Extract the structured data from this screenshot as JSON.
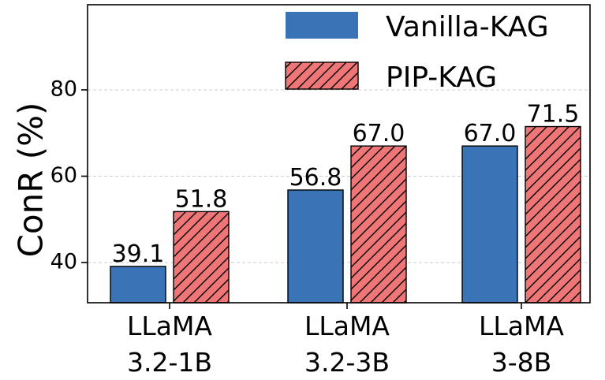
{
  "chart_data": {
    "type": "bar",
    "title": "",
    "xlabel": "",
    "ylabel": "ConR (%)",
    "ylim": [
      30,
      100
    ],
    "yticks": [
      "40",
      "60",
      "80"
    ],
    "grid": "horizontal dashed",
    "legend_position": "top-right",
    "categories": [
      {
        "line1": "LLaMA",
        "line2": "3.2-1B"
      },
      {
        "line1": "LLaMA",
        "line2": "3.2-3B"
      },
      {
        "line1": "LLaMA",
        "line2": "3-8B"
      }
    ],
    "series": [
      {
        "name": "Vanilla-KAG",
        "color": "#3b74b6",
        "hatch": "none",
        "values": [
          39.1,
          56.8,
          67.0
        ],
        "labels": [
          "39.1",
          "56.8",
          "67.0"
        ]
      },
      {
        "name": "PIP-KAG",
        "color": "#ee7677",
        "hatch": "diagonal",
        "values": [
          51.8,
          67.0,
          71.5
        ],
        "labels": [
          "51.8",
          "67.0",
          "71.5"
        ]
      }
    ]
  }
}
